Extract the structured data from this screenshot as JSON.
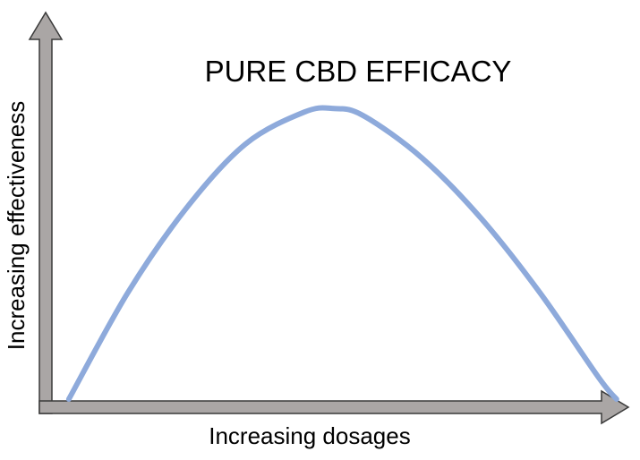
{
  "chart_data": {
    "type": "line",
    "title": "PURE CBD EFFICACY",
    "xlabel": "Increasing dosages",
    "ylabel": "Increasing effectiveness",
    "xlim": [
      0,
      100
    ],
    "ylim": [
      0,
      100
    ],
    "grid": false,
    "legend": "none",
    "series": [
      {
        "x": [
          5,
          15,
          25,
          35,
          45,
          50,
          55,
          65,
          75,
          85,
          95,
          98
        ],
        "values": [
          0,
          30,
          54,
          72,
          81,
          82,
          80,
          68,
          51,
          30,
          6,
          0
        ]
      }
    ]
  },
  "colors": {
    "curve": "#8eaadb",
    "axis_fill": "#aaa6a5",
    "axis_stroke": "#3a3a3a"
  }
}
